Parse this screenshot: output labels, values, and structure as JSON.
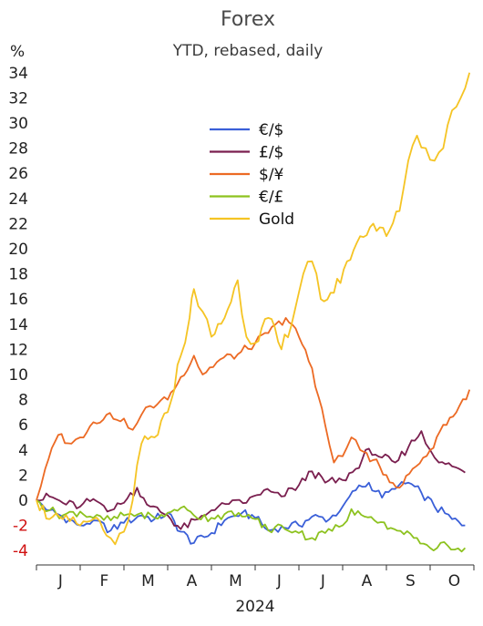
{
  "chart_data": {
    "type": "line",
    "title": "Forex",
    "subtitle": "YTD, rebased, daily",
    "y_unit": "%",
    "xlabel": "2024",
    "ylim": [
      -4,
      34
    ],
    "y_ticks": [
      "34",
      "32",
      "30",
      "28",
      "26",
      "24",
      "22",
      "20",
      "18",
      "16",
      "14",
      "12",
      "10",
      "8",
      "6",
      "4",
      "2",
      "0",
      "-2",
      "-4"
    ],
    "month_labels": [
      "J",
      "F",
      "M",
      "A",
      "M",
      "J",
      "J",
      "A",
      "S",
      "O"
    ],
    "grid": false,
    "legend_position": "upper-center",
    "series": [
      {
        "name": "€/$",
        "color": "#3a5fd8",
        "points": [
          [
            0,
            0
          ],
          [
            0.3,
            -0.8
          ],
          [
            0.6,
            -1.3
          ],
          [
            1.0,
            -2.0
          ],
          [
            1.3,
            -1.6
          ],
          [
            1.7,
            -2.4
          ],
          [
            2.0,
            -1.8
          ],
          [
            2.4,
            -1.2
          ],
          [
            2.7,
            -1.5
          ],
          [
            3.0,
            -1.0
          ],
          [
            3.3,
            -2.5
          ],
          [
            3.6,
            -3.4
          ],
          [
            4.0,
            -2.6
          ],
          [
            4.3,
            -1.6
          ],
          [
            4.7,
            -1.0
          ],
          [
            5.0,
            -1.4
          ],
          [
            5.3,
            -2.4
          ],
          [
            5.6,
            -2.1
          ],
          [
            6.0,
            -2.0
          ],
          [
            6.3,
            -1.3
          ],
          [
            6.7,
            -1.5
          ],
          [
            7.0,
            -0.5
          ],
          [
            7.3,
            0.8
          ],
          [
            7.6,
            1.4
          ],
          [
            7.9,
            0.2
          ],
          [
            8.2,
            0.9
          ],
          [
            8.5,
            1.4
          ],
          [
            8.8,
            0.6
          ],
          [
            9.1,
            -0.5
          ],
          [
            9.5,
            -1.5
          ],
          [
            9.8,
            -2.0
          ]
        ]
      },
      {
        "name": "£/$",
        "color": "#7a1f4f",
        "points": [
          [
            0,
            0
          ],
          [
            0.3,
            0.3
          ],
          [
            0.6,
            -0.2
          ],
          [
            1.0,
            -0.5
          ],
          [
            1.3,
            0.1
          ],
          [
            1.7,
            -0.8
          ],
          [
            2.0,
            -0.2
          ],
          [
            2.3,
            1.0
          ],
          [
            2.6,
            -0.5
          ],
          [
            3.0,
            -1.2
          ],
          [
            3.3,
            -2.3
          ],
          [
            3.7,
            -1.5
          ],
          [
            4.0,
            -0.8
          ],
          [
            4.4,
            -0.3
          ],
          [
            4.8,
            -0.2
          ],
          [
            5.2,
            0.8
          ],
          [
            5.6,
            0.3
          ],
          [
            6.0,
            1.2
          ],
          [
            6.3,
            2.3
          ],
          [
            6.6,
            1.4
          ],
          [
            7.0,
            1.6
          ],
          [
            7.3,
            2.5
          ],
          [
            7.6,
            4.1
          ],
          [
            7.9,
            3.4
          ],
          [
            8.2,
            3.0
          ],
          [
            8.5,
            4.2
          ],
          [
            8.8,
            5.5
          ],
          [
            9.0,
            4.0
          ],
          [
            9.2,
            3.0
          ],
          [
            9.5,
            2.7
          ],
          [
            9.8,
            2.2
          ]
        ]
      },
      {
        "name": "$/¥",
        "color": "#ec6a24",
        "points": [
          [
            0,
            0
          ],
          [
            0.2,
            2.5
          ],
          [
            0.5,
            5.2
          ],
          [
            0.8,
            4.5
          ],
          [
            1.0,
            5.0
          ],
          [
            1.3,
            6.2
          ],
          [
            1.6,
            6.8
          ],
          [
            2.0,
            6.5
          ],
          [
            2.2,
            5.6
          ],
          [
            2.4,
            6.8
          ],
          [
            2.6,
            7.5
          ],
          [
            3.0,
            8.0
          ],
          [
            3.3,
            9.8
          ],
          [
            3.6,
            11.5
          ],
          [
            3.8,
            10.0
          ],
          [
            4.2,
            11.2
          ],
          [
            4.6,
            11.6
          ],
          [
            5.0,
            12.5
          ],
          [
            5.3,
            13.3
          ],
          [
            5.7,
            14.5
          ],
          [
            6.0,
            13.0
          ],
          [
            6.3,
            10.5
          ],
          [
            6.6,
            6.0
          ],
          [
            6.8,
            3.0
          ],
          [
            7.0,
            3.5
          ],
          [
            7.2,
            5.0
          ],
          [
            7.4,
            4.0
          ],
          [
            7.7,
            3.2
          ],
          [
            8.0,
            2.0
          ],
          [
            8.3,
            1.0
          ],
          [
            8.6,
            2.5
          ],
          [
            9.0,
            4.0
          ],
          [
            9.3,
            6.0
          ],
          [
            9.6,
            7.0
          ],
          [
            9.9,
            8.8
          ]
        ]
      },
      {
        "name": "€/£",
        "color": "#8dc21f",
        "points": [
          [
            0,
            0
          ],
          [
            0.3,
            -0.8
          ],
          [
            0.6,
            -1.2
          ],
          [
            1.0,
            -0.9
          ],
          [
            1.3,
            -1.4
          ],
          [
            1.7,
            -1.6
          ],
          [
            2.0,
            -1.2
          ],
          [
            2.4,
            -1.0
          ],
          [
            2.7,
            -1.4
          ],
          [
            3.0,
            -1.0
          ],
          [
            3.3,
            -0.6
          ],
          [
            3.6,
            -1.2
          ],
          [
            4.0,
            -1.4
          ],
          [
            4.3,
            -1.1
          ],
          [
            4.7,
            -1.3
          ],
          [
            5.0,
            -1.5
          ],
          [
            5.3,
            -2.4
          ],
          [
            5.6,
            -2.0
          ],
          [
            6.0,
            -2.6
          ],
          [
            6.3,
            -3.0
          ],
          [
            6.6,
            -2.6
          ],
          [
            7.0,
            -2.0
          ],
          [
            7.2,
            -0.7
          ],
          [
            7.5,
            -1.3
          ],
          [
            7.8,
            -1.8
          ],
          [
            8.1,
            -2.2
          ],
          [
            8.4,
            -2.7
          ],
          [
            8.7,
            -3.0
          ],
          [
            9.0,
            -3.8
          ],
          [
            9.4,
            -3.6
          ],
          [
            9.8,
            -3.8
          ]
        ]
      },
      {
        "name": "Gold",
        "color": "#f5c424",
        "points": [
          [
            0,
            0
          ],
          [
            0.3,
            -1.5
          ],
          [
            0.6,
            -1.5
          ],
          [
            1.0,
            -2.0
          ],
          [
            1.3,
            -1.5
          ],
          [
            1.6,
            -2.8
          ],
          [
            1.8,
            -3.5
          ],
          [
            2.0,
            -2.5
          ],
          [
            2.2,
            0.0
          ],
          [
            2.4,
            4.5
          ],
          [
            2.7,
            5.0
          ],
          [
            3.0,
            7.0
          ],
          [
            3.3,
            11.5
          ],
          [
            3.5,
            14.5
          ],
          [
            3.6,
            16.8
          ],
          [
            3.8,
            15.0
          ],
          [
            4.0,
            13.0
          ],
          [
            4.3,
            14.5
          ],
          [
            4.6,
            17.5
          ],
          [
            4.8,
            13.0
          ],
          [
            5.0,
            12.5
          ],
          [
            5.3,
            14.5
          ],
          [
            5.6,
            12.0
          ],
          [
            5.9,
            15.0
          ],
          [
            6.1,
            18.0
          ],
          [
            6.3,
            19.0
          ],
          [
            6.5,
            16.0
          ],
          [
            6.8,
            16.5
          ],
          [
            7.1,
            19.0
          ],
          [
            7.4,
            21.0
          ],
          [
            7.7,
            22.0
          ],
          [
            8.0,
            21.0
          ],
          [
            8.3,
            23.0
          ],
          [
            8.5,
            27.0
          ],
          [
            8.7,
            29.0
          ],
          [
            8.9,
            28.0
          ],
          [
            9.1,
            27.0
          ],
          [
            9.3,
            28.0
          ],
          [
            9.5,
            31.0
          ],
          [
            9.7,
            32.0
          ],
          [
            9.9,
            34.0
          ]
        ]
      }
    ]
  }
}
